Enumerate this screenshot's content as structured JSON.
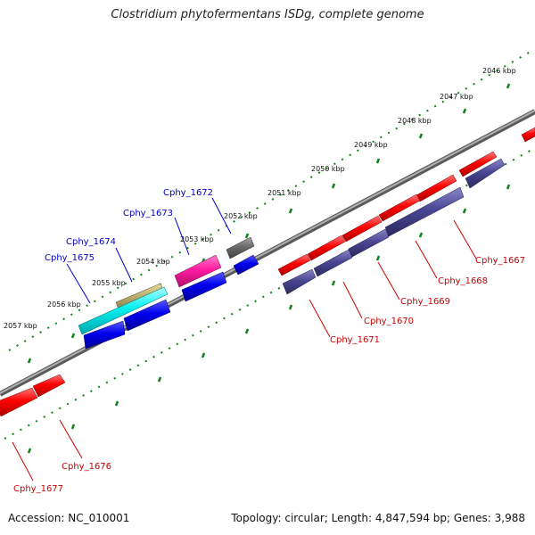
{
  "title": "Clostridium phytofermentans ISDg, complete genome",
  "footer": {
    "accession": "Accession: NC_010001",
    "topology": "Topology: circular; Length: 4,847,594 bp; Genes: 3,988"
  },
  "colors": {
    "forward_gene": "#ff0000",
    "reverse_gene": "#ff0000",
    "operon_gene": "#4a4694",
    "blue_gene": "#0000ee",
    "cyan_gene": "#00f0f0",
    "khaki_gene": "#b9ae6c",
    "magenta_gene": "#ff1ca0",
    "grey_gene": "#6a6a6a",
    "backbone": "#8c8c8c",
    "tick": "#11821a",
    "label_blue": "#0000cc",
    "label_red": "#cc0000"
  },
  "ticks": [
    "2046 kbp",
    "2047 kbp",
    "2048 kbp",
    "2049 kbp",
    "2050 kbp",
    "2051 kbp",
    "2052 kbp",
    "2053 kbp",
    "2054 kbp",
    "2055 kbp",
    "2056 kbp",
    "2057 kbp"
  ],
  "gene_labels": [
    "Cphy_1667",
    "Cphy_1668",
    "Cphy_1669",
    "Cphy_1670",
    "Cphy_1671",
    "Cphy_1672",
    "Cphy_1673",
    "Cphy_1674",
    "Cphy_1675",
    "Cphy_1676",
    "Cphy_1677"
  ]
}
